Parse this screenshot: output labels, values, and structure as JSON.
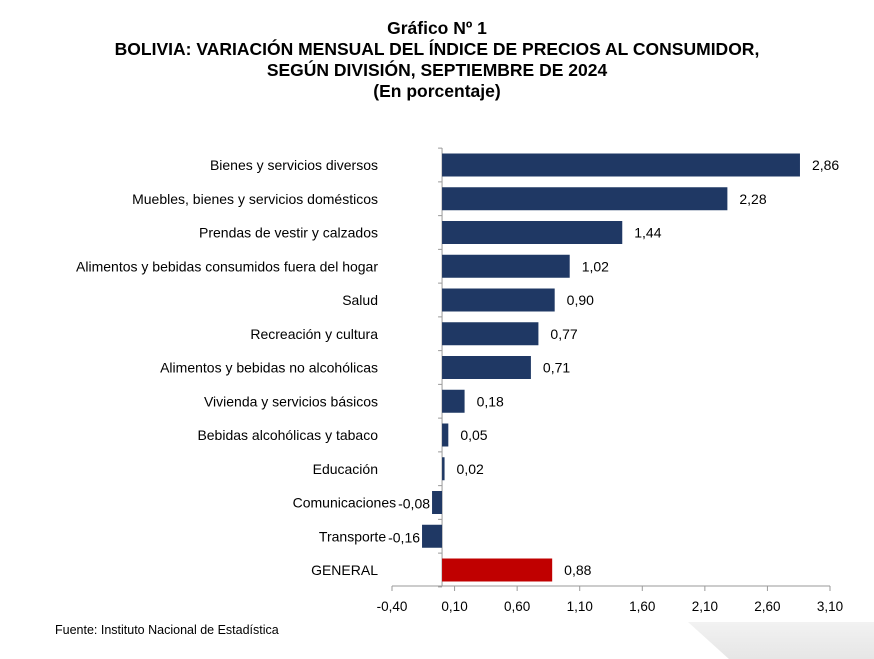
{
  "title": {
    "line1": "Gráfico Nº 1",
    "line2": "BOLIVIA: VARIACIÓN MENSUAL DEL ÍNDICE DE PRECIOS AL CONSUMIDOR,",
    "line3": "SEGÚN DIVISIÓN, SEPTIEMBRE DE 2024",
    "line4": "(En porcentaje)"
  },
  "source": "Fuente: Instituto Nacional de Estadística",
  "colors": {
    "bar": "#1f3864",
    "highlight": "#c00000",
    "axis": "#9a9a9a"
  },
  "chart_data": {
    "type": "bar",
    "orientation": "horizontal",
    "categories": [
      "Bienes y servicios diversos",
      "Muebles, bienes y servicios domésticos",
      "Prendas de vestir y calzados",
      "Alimentos y bebidas consumidos fuera del hogar",
      "Salud",
      "Recreación y cultura",
      "Alimentos y bebidas no alcohólicas",
      "Vivienda y servicios básicos",
      "Bebidas alcohólicas y tabaco",
      "Educación",
      "Comunicaciones",
      "Transporte",
      "GENERAL"
    ],
    "values": [
      2.86,
      2.28,
      1.44,
      1.02,
      0.9,
      0.77,
      0.71,
      0.18,
      0.05,
      0.02,
      -0.08,
      -0.16,
      0.88
    ],
    "value_labels": [
      "2,86",
      "2,28",
      "1,44",
      "1,02",
      "0,90",
      "0,77",
      "0,71",
      "0,18",
      "0,05",
      "0,02",
      "-0,08",
      "-0,16",
      "0,88"
    ],
    "highlight_category": "GENERAL",
    "xlim": [
      -0.4,
      3.1
    ],
    "xticks": [
      -0.4,
      0.1,
      0.6,
      1.1,
      1.6,
      2.1,
      2.6,
      3.1
    ],
    "xtick_labels": [
      "-0,40",
      "0,10",
      "0,60",
      "1,10",
      "1,60",
      "2,10",
      "2,60",
      "3,10"
    ],
    "grid": false,
    "legend": "none"
  }
}
